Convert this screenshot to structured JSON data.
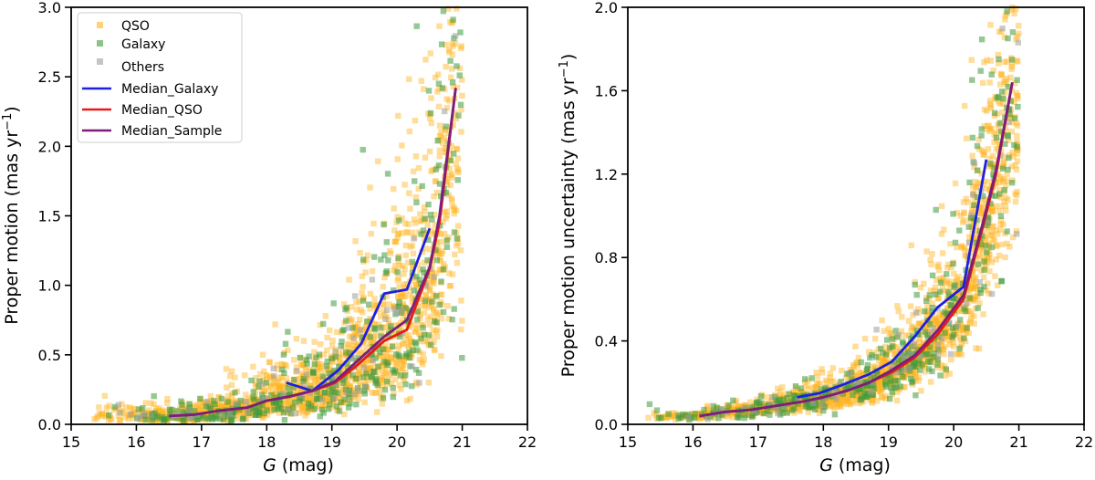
{
  "chart_data": [
    {
      "type": "scatter",
      "panel": "left",
      "xlabel": "G (mag)",
      "ylabel": "Proper motion (mas yr⁻¹)",
      "xlim": [
        15,
        22
      ],
      "ylim": [
        0,
        3
      ],
      "xticks": [
        15,
        16,
        17,
        18,
        19,
        20,
        21,
        22
      ],
      "yticks": [
        0.0,
        0.5,
        1.0,
        1.5,
        2.0,
        2.5,
        3.0
      ],
      "ytick_labels": [
        "0.0",
        "0.5",
        "1.0",
        "1.5",
        "2.0",
        "2.5",
        "3.0"
      ],
      "legend": {
        "location": "upper-left",
        "entries": [
          "QSO",
          "Galaxy",
          "Others",
          "Median_Galaxy",
          "Median_QSO",
          "Median_Sample"
        ]
      },
      "scatter_model": {
        "description": "approximate point cloud",
        "qso_count": 1500,
        "galaxy_count": 420,
        "others_count": 70,
        "x_range": [
          15.2,
          21.0
        ]
      },
      "series": [
        {
          "name": "Median_Galaxy",
          "color": "#1f1fdf",
          "x": [
            18.3,
            18.7,
            19.1,
            19.45,
            19.8,
            20.15,
            20.5
          ],
          "y": [
            0.3,
            0.24,
            0.39,
            0.58,
            0.94,
            0.97,
            1.41
          ]
        },
        {
          "name": "Median_QSO",
          "color": "#e41a1c",
          "x": [
            16.5,
            16.9,
            17.3,
            17.7,
            18.0,
            18.35,
            18.7,
            19.05,
            19.4,
            19.8,
            20.15,
            20.5,
            20.65,
            20.9
          ],
          "y": [
            0.06,
            0.07,
            0.1,
            0.12,
            0.17,
            0.2,
            0.24,
            0.3,
            0.43,
            0.6,
            0.68,
            1.12,
            1.45,
            2.42
          ]
        },
        {
          "name": "Median_Sample",
          "color": "#7b1f7b",
          "x": [
            16.5,
            16.9,
            17.3,
            17.7,
            18.0,
            18.35,
            18.7,
            19.05,
            19.4,
            19.8,
            20.15,
            20.5,
            20.65,
            20.9
          ],
          "y": [
            0.06,
            0.07,
            0.1,
            0.12,
            0.17,
            0.2,
            0.24,
            0.31,
            0.46,
            0.63,
            0.75,
            1.13,
            1.5,
            2.42
          ]
        }
      ]
    },
    {
      "type": "scatter",
      "panel": "right",
      "xlabel": "G (mag)",
      "ylabel": "Proper motion uncertainty (mas yr⁻¹)",
      "xlim": [
        15,
        22
      ],
      "ylim": [
        0,
        2
      ],
      "xticks": [
        15,
        16,
        17,
        18,
        19,
        20,
        21,
        22
      ],
      "yticks": [
        0.0,
        0.4,
        0.8,
        1.2,
        1.6,
        2.0
      ],
      "ytick_labels": [
        "0.0",
        "0.4",
        "0.8",
        "1.2",
        "1.6",
        "2.0"
      ],
      "scatter_model": {
        "description": "approximate point cloud",
        "qso_count": 1600,
        "galaxy_count": 420,
        "others_count": 70,
        "x_range": [
          15.2,
          21.0
        ]
      },
      "series": [
        {
          "name": "Median_Galaxy",
          "color": "#1f1fdf",
          "x": [
            17.6,
            17.95,
            18.3,
            18.7,
            19.05,
            19.4,
            19.75,
            20.15,
            20.5
          ],
          "y": [
            0.13,
            0.15,
            0.19,
            0.24,
            0.3,
            0.42,
            0.56,
            0.66,
            1.27
          ]
        },
        {
          "name": "Median_QSO",
          "color": "#e41a1c",
          "x": [
            16.1,
            16.5,
            16.9,
            17.3,
            17.7,
            18.0,
            18.35,
            18.7,
            19.05,
            19.4,
            19.75,
            20.15,
            20.45,
            20.65,
            20.9
          ],
          "y": [
            0.04,
            0.06,
            0.07,
            0.09,
            0.11,
            0.13,
            0.16,
            0.2,
            0.25,
            0.32,
            0.43,
            0.6,
            0.95,
            1.2,
            1.64
          ]
        },
        {
          "name": "Median_Sample",
          "color": "#7b1f7b",
          "x": [
            16.1,
            16.5,
            16.9,
            17.3,
            17.7,
            18.0,
            18.35,
            18.7,
            19.05,
            19.4,
            19.75,
            20.15,
            20.45,
            20.65,
            20.9
          ],
          "y": [
            0.04,
            0.06,
            0.07,
            0.09,
            0.11,
            0.13,
            0.16,
            0.2,
            0.26,
            0.33,
            0.45,
            0.62,
            0.97,
            1.22,
            1.64
          ]
        }
      ]
    }
  ],
  "legend_colors": {
    "QSO": "#ffb31f",
    "Galaxy": "#3f9a3f",
    "Others": "#9e9e9e"
  },
  "axis_label_parts": {
    "left_y_prefix": "Proper motion (",
    "right_y_prefix": "Proper motion uncertainty (",
    "y_unit_main": "mas yr",
    "y_unit_sup": "−1",
    "y_suffix": ")",
    "x_italic": "G",
    "x_rest": " (mag)"
  }
}
